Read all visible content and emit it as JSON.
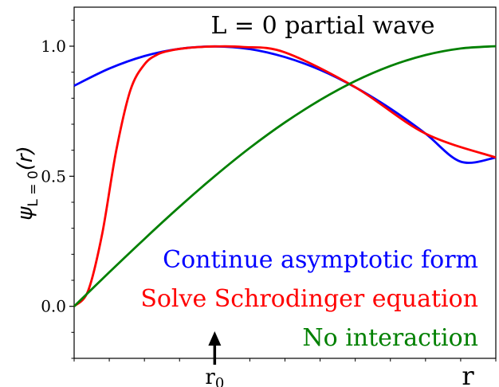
{
  "chart_data": {
    "type": "line",
    "title": "L = 0 partial wave",
    "xlabel": "r",
    "ylabel": "ψL=0(r)",
    "ylabel_main": "ψ",
    "ylabel_sub": "L = 0",
    "ylabel_arg": "(r)",
    "xlim": [
      0,
      3.0
    ],
    "ylim": [
      -0.2,
      1.15
    ],
    "yticks": [
      {
        "value": 0.0,
        "label": "0.0"
      },
      {
        "value": 0.5,
        "label": "0.5"
      },
      {
        "value": 1.0,
        "label": "1.0"
      }
    ],
    "xmarker": {
      "value": 1.0,
      "label": "r0",
      "label_base": "r",
      "label_sub": "0"
    },
    "grid": false,
    "series": [
      {
        "name": "Continue asymptotic form",
        "color": "#0000ff",
        "x": [
          0,
          0.25,
          0.5,
          0.75,
          1.0,
          1.25,
          1.5,
          1.75,
          2.0,
          2.25,
          2.5,
          2.75,
          3.0
        ],
        "y": [
          0.848,
          0.914,
          0.962,
          0.99,
          0.999,
          0.989,
          0.958,
          0.909,
          0.842,
          0.76,
          0.664,
          0.556,
          0.572
        ]
      },
      {
        "name": "Solve Schrodinger equation",
        "color": "#ff0000",
        "x": [
          0,
          0.1,
          0.2,
          0.3,
          0.4,
          0.5,
          0.6,
          0.7,
          0.8,
          0.9,
          1.0,
          1.2,
          1.5,
          2.0,
          2.5,
          3.0
        ],
        "y": [
          0.0,
          0.06,
          0.28,
          0.6,
          0.83,
          0.93,
          0.97,
          0.985,
          0.993,
          0.997,
          0.999,
          0.997,
          0.976,
          0.842,
          0.664,
          0.572
        ]
      },
      {
        "name": "No interaction",
        "color": "#008000",
        "x": [
          0,
          0.25,
          0.5,
          0.75,
          1.0,
          1.25,
          1.5,
          1.75,
          2.0,
          2.25,
          2.5,
          2.75,
          3.0
        ],
        "y": [
          0.0,
          0.131,
          0.259,
          0.383,
          0.5,
          0.609,
          0.707,
          0.793,
          0.866,
          0.924,
          0.966,
          0.991,
          1.0
        ]
      }
    ],
    "legend": [
      {
        "text": "Continue asymptotic form",
        "color": "#0000ff"
      },
      {
        "text": "Solve Schrodinger equation",
        "color": "#ff0000"
      },
      {
        "text": "No interaction",
        "color": "#008000"
      }
    ],
    "legend_position": "bottom-right"
  }
}
